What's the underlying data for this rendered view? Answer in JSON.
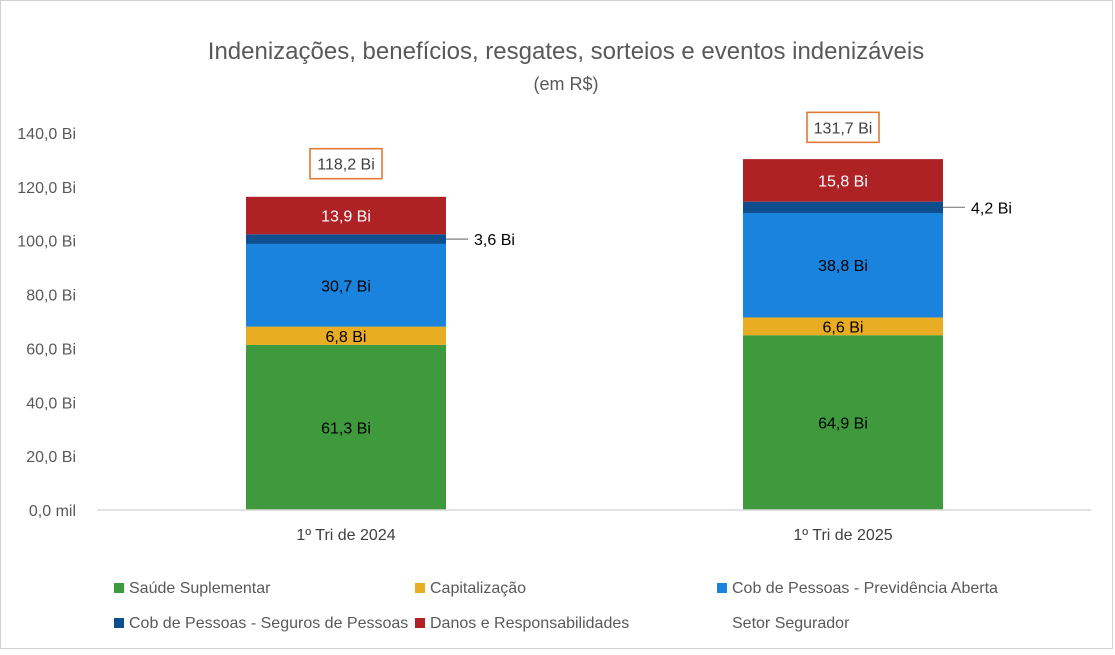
{
  "chart_data": {
    "type": "bar",
    "stacked": true,
    "title": "Indenizações, benefícios, resgates, sorteios e eventos indenizáveis",
    "subtitle": "(em R$)",
    "categories": [
      "1º Tri de 2024",
      "1º Tri de 2025"
    ],
    "ylim": [
      0,
      140
    ],
    "yticks": [
      {
        "value": 0,
        "label": "0,0 mil"
      },
      {
        "value": 20,
        "label": "20,0 Bi"
      },
      {
        "value": 40,
        "label": "40,0 Bi"
      },
      {
        "value": 60,
        "label": "60,0 Bi"
      },
      {
        "value": 80,
        "label": "80,0 Bi"
      },
      {
        "value": 100,
        "label": "100,0 Bi"
      },
      {
        "value": 120,
        "label": "120,0 Bi"
      },
      {
        "value": 140,
        "label": "140,0 Bi"
      }
    ],
    "grid": false,
    "legend_position": "bottom",
    "series": [
      {
        "name": "Saúde Suplementar",
        "color": "#3e9a3c",
        "values": [
          61.3,
          64.9
        ],
        "labels": [
          "61,3 Bi",
          "64,9 Bi"
        ],
        "label_color": "#000000",
        "label_position": "inside"
      },
      {
        "name": "Capitalização",
        "color": "#e8ad22",
        "values": [
          6.8,
          6.6
        ],
        "labels": [
          "6,8 Bi",
          "6,6 Bi"
        ],
        "label_color": "#000000",
        "label_position": "inside"
      },
      {
        "name": "Cob de Pessoas - Previdência Aberta",
        "color": "#1a83de",
        "values": [
          30.7,
          38.8
        ],
        "labels": [
          "30,7 Bi",
          "38,8 Bi"
        ],
        "label_color": "#000000",
        "label_position": "inside"
      },
      {
        "name": "Cob de Pessoas - Seguros de Pessoas",
        "color": "#0d4f8e",
        "values": [
          3.6,
          4.2
        ],
        "labels": [
          "3,6 Bi",
          "4,2 Bi"
        ],
        "label_color": "#000000",
        "label_position": "outside"
      },
      {
        "name": "Danos e Responsabilidades",
        "color": "#ae2124",
        "values": [
          13.9,
          15.8
        ],
        "labels": [
          "13,9 Bi",
          "15,8 Bi"
        ],
        "label_color": "#ffffff",
        "label_position": "inside"
      }
    ],
    "totals": {
      "name": "Setor Segurador",
      "values": [
        118.2,
        131.7
      ],
      "labels": [
        "118,2 Bi",
        "131,7 Bi"
      ],
      "box_color": "#e07a36"
    }
  }
}
